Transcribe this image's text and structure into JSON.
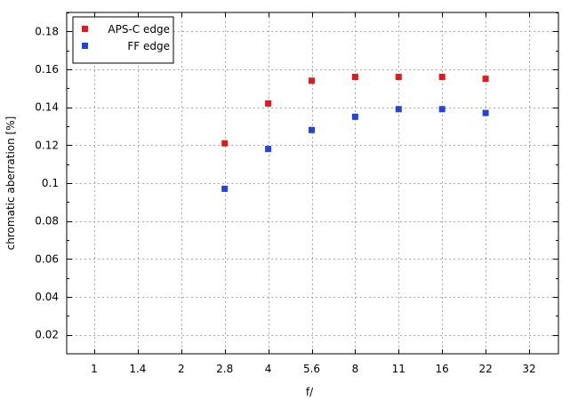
{
  "chart_data": {
    "type": "scatter",
    "xlabel": "f/",
    "ylabel": "chromatic aberration [%]",
    "categories": [
      "1",
      "1.4",
      "2",
      "2.8",
      "4",
      "5.6",
      "8",
      "11",
      "16",
      "22",
      "32"
    ],
    "ylim": [
      0.01,
      0.19
    ],
    "yticks": [
      "0.02",
      "0.04",
      "0.06",
      "0.08",
      "0.1",
      "0.12",
      "0.14",
      "0.16",
      "0.18"
    ],
    "grid": true,
    "legend_position": "top-left",
    "series": [
      {
        "name": "APS-C edge",
        "color": "#e41a1a",
        "marker": "square",
        "points": [
          {
            "x": "2.8",
            "y": 0.121
          },
          {
            "x": "4",
            "y": 0.142
          },
          {
            "x": "5.6",
            "y": 0.154
          },
          {
            "x": "8",
            "y": 0.156
          },
          {
            "x": "11",
            "y": 0.156
          },
          {
            "x": "16",
            "y": 0.156
          },
          {
            "x": "22",
            "y": 0.155
          }
        ]
      },
      {
        "name": "FF edge",
        "color": "#2244dd",
        "marker": "square",
        "points": [
          {
            "x": "2.8",
            "y": 0.097
          },
          {
            "x": "4",
            "y": 0.118
          },
          {
            "x": "5.6",
            "y": 0.128
          },
          {
            "x": "8",
            "y": 0.135
          },
          {
            "x": "11",
            "y": 0.139
          },
          {
            "x": "16",
            "y": 0.139
          },
          {
            "x": "22",
            "y": 0.137
          }
        ]
      }
    ]
  }
}
